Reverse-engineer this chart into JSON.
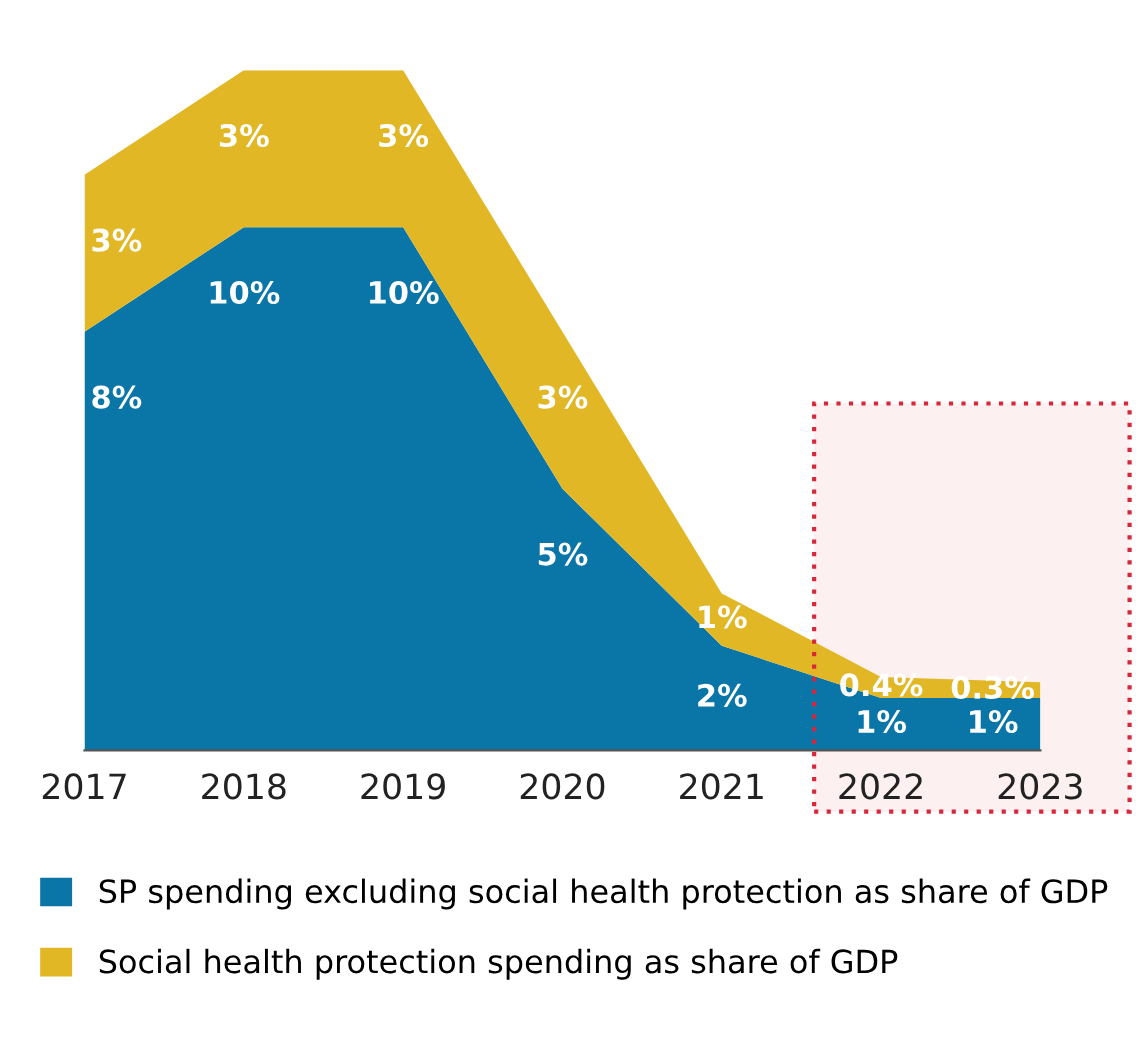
{
  "chart_data": {
    "type": "area",
    "stacked": true,
    "data_labels": true,
    "categories": [
      "2017",
      "2018",
      "2019",
      "2020",
      "2021",
      "2022",
      "2023"
    ],
    "series": [
      {
        "name": "SP spending excluding social health protection as share of GDP",
        "color": "#0a76a8",
        "values": [
          8,
          10,
          10,
          5,
          2,
          1,
          1
        ],
        "value_labels": [
          "8%",
          "10%",
          "10%",
          "5%",
          "2%",
          "1%",
          "1%"
        ]
      },
      {
        "name": "Social health protection spending as share of GDP",
        "color": "#e2b726",
        "values": [
          3,
          3,
          3,
          3,
          1,
          0.4,
          0.3
        ],
        "value_labels": [
          "3%",
          "3%",
          "3%",
          "3%",
          "1%",
          "0.4%",
          "0.3%"
        ]
      }
    ],
    "bands": [
      {
        "axis": "x",
        "from": "2022",
        "to": "2023",
        "label": null,
        "color": "#d9263a"
      }
    ],
    "legend": "bottom",
    "grid": false
  }
}
